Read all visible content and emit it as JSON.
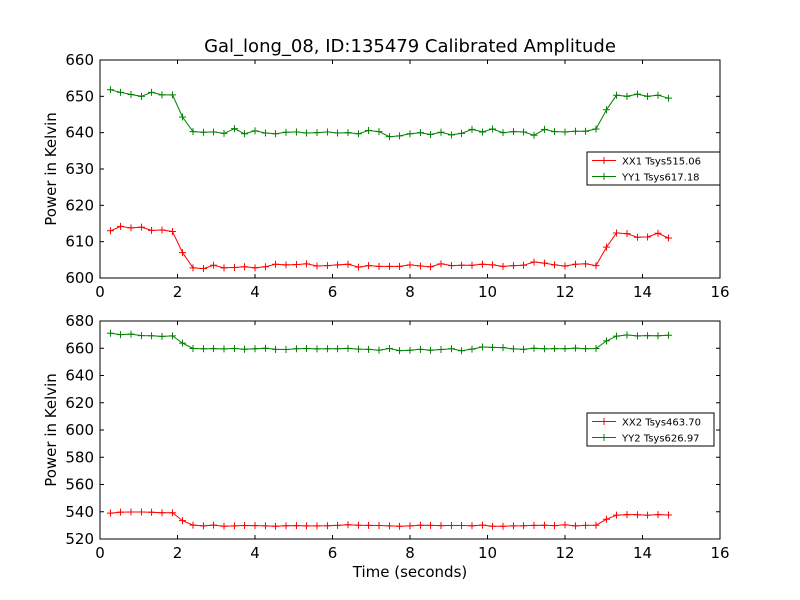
{
  "chart_data": [
    {
      "type": "line",
      "title": "Gal_long_08, ID:135479 Calibrated Amplitude",
      "xlabel": "",
      "ylabel": "Power in Kelvin",
      "xlim": [
        0,
        16
      ],
      "ylim": [
        600,
        660
      ],
      "xticks": [
        0,
        2,
        4,
        6,
        8,
        10,
        12,
        14,
        16
      ],
      "yticks": [
        600,
        610,
        620,
        630,
        640,
        650,
        660
      ],
      "grid": false,
      "legend": "center-right",
      "series": [
        {
          "name": "XX1 Tsys515.06",
          "color": "#ff0000",
          "x": [
            0.27,
            0.53,
            0.8,
            1.07,
            1.33,
            1.6,
            1.87,
            2.13,
            2.4,
            2.67,
            2.93,
            3.2,
            3.47,
            3.73,
            4,
            4.27,
            4.53,
            4.8,
            5.07,
            5.33,
            5.6,
            5.87,
            6.13,
            6.4,
            6.67,
            6.93,
            7.2,
            7.47,
            7.73,
            8,
            8.27,
            8.53,
            8.8,
            9.07,
            9.33,
            9.6,
            9.87,
            10.13,
            10.4,
            10.67,
            10.93,
            11.2,
            11.47,
            11.73,
            12,
            12.27,
            12.53,
            12.8,
            13.07,
            13.33,
            13.6,
            13.87,
            14.13,
            14.4,
            14.67
          ],
          "y": [
            613,
            614.2,
            613.8,
            614,
            613.1,
            613.2,
            612.8,
            607,
            602.8,
            602.6,
            603.5,
            602.8,
            602.9,
            603.1,
            602.8,
            603.1,
            603.8,
            603.6,
            603.7,
            603.9,
            603.3,
            603.4,
            603.6,
            603.8,
            603,
            603.4,
            603.2,
            603.2,
            603.2,
            603.6,
            603.3,
            603.1,
            603.9,
            603.4,
            603.5,
            603.5,
            603.8,
            603.6,
            603.2,
            603.4,
            603.5,
            604.4,
            604.1,
            603.6,
            603.3,
            603.8,
            603.9,
            603.4,
            608.5,
            612.4,
            612.2,
            611.2,
            611.3,
            612.3,
            611
          ]
        },
        {
          "name": "YY1 Tsys617.18",
          "color": "#008000",
          "x": [
            0.27,
            0.53,
            0.8,
            1.07,
            1.33,
            1.6,
            1.87,
            2.13,
            2.4,
            2.67,
            2.93,
            3.2,
            3.47,
            3.73,
            4,
            4.27,
            4.53,
            4.8,
            5.07,
            5.33,
            5.6,
            5.87,
            6.13,
            6.4,
            6.67,
            6.93,
            7.2,
            7.47,
            7.73,
            8,
            8.27,
            8.53,
            8.8,
            9.07,
            9.33,
            9.6,
            9.87,
            10.13,
            10.4,
            10.67,
            10.93,
            11.2,
            11.47,
            11.73,
            12,
            12.27,
            12.53,
            12.8,
            13.07,
            13.33,
            13.6,
            13.87,
            14.13,
            14.4,
            14.67
          ],
          "y": [
            651.8,
            651.1,
            650.5,
            650,
            651.1,
            650.4,
            650.4,
            644.3,
            640.3,
            640.1,
            640.2,
            639.8,
            641.1,
            639.7,
            640.5,
            639.9,
            639.7,
            640.1,
            640.2,
            639.9,
            640,
            640.2,
            639.9,
            640,
            639.7,
            640.6,
            640.3,
            638.9,
            639.1,
            639.7,
            640,
            639.5,
            640.1,
            639.4,
            639.8,
            640.9,
            640.2,
            641,
            640,
            640.3,
            640.2,
            639.3,
            640.9,
            640.3,
            640.2,
            640.4,
            640.4,
            641,
            646.3,
            650.3,
            650,
            650.6,
            650,
            650.3,
            649.5
          ]
        }
      ]
    },
    {
      "type": "line",
      "title": "",
      "xlabel": "Time (seconds)",
      "ylabel": "Power in Kelvin",
      "xlim": [
        0,
        16
      ],
      "ylim": [
        520,
        680
      ],
      "xticks": [
        0,
        2,
        4,
        6,
        8,
        10,
        12,
        14,
        16
      ],
      "yticks": [
        520,
        540,
        560,
        580,
        600,
        620,
        640,
        660,
        680
      ],
      "grid": false,
      "legend": "center-right",
      "series": [
        {
          "name": "XX2 Tsys463.70",
          "color": "#ff0000",
          "x": [
            0.27,
            0.53,
            0.8,
            1.07,
            1.33,
            1.6,
            1.87,
            2.13,
            2.4,
            2.67,
            2.93,
            3.2,
            3.47,
            3.73,
            4,
            4.27,
            4.53,
            4.8,
            5.07,
            5.33,
            5.6,
            5.87,
            6.13,
            6.4,
            6.67,
            6.93,
            7.2,
            7.47,
            7.73,
            8,
            8.27,
            8.53,
            8.8,
            9.07,
            9.33,
            9.6,
            9.87,
            10.13,
            10.4,
            10.67,
            10.93,
            11.2,
            11.47,
            11.73,
            12,
            12.27,
            12.53,
            12.8,
            13.07,
            13.33,
            13.6,
            13.87,
            14.13,
            14.4,
            14.67
          ],
          "y": [
            539,
            539.7,
            539.8,
            539.8,
            539.6,
            539.3,
            539.3,
            533.5,
            530.2,
            529.6,
            530.2,
            529.4,
            529.6,
            529.9,
            529.8,
            529.6,
            529.4,
            529.7,
            529.8,
            529.6,
            529.6,
            529.7,
            530,
            530.5,
            530.1,
            530,
            529.9,
            529.6,
            529.4,
            529.6,
            530.1,
            530,
            529.8,
            529.9,
            529.9,
            529.7,
            530.2,
            529.4,
            529.4,
            529.6,
            529.7,
            530,
            530.1,
            529.8,
            530.4,
            529.6,
            530,
            530.1,
            534.5,
            537.5,
            537.9,
            537.8,
            537.5,
            537.9,
            537.6
          ]
        },
        {
          "name": "YY2 Tsys626.97",
          "color": "#008000",
          "x": [
            0.27,
            0.53,
            0.8,
            1.07,
            1.33,
            1.6,
            1.87,
            2.13,
            2.4,
            2.67,
            2.93,
            3.2,
            3.47,
            3.73,
            4,
            4.27,
            4.53,
            4.8,
            5.07,
            5.33,
            5.6,
            5.87,
            6.13,
            6.4,
            6.67,
            6.93,
            7.2,
            7.47,
            7.73,
            8,
            8.27,
            8.53,
            8.8,
            9.07,
            9.33,
            9.6,
            9.87,
            10.13,
            10.4,
            10.67,
            10.93,
            11.2,
            11.47,
            11.73,
            12,
            12.27,
            12.53,
            12.8,
            13.07,
            13.33,
            13.6,
            13.87,
            14.13,
            14.4,
            14.67
          ],
          "y": [
            671,
            670,
            670.4,
            669.3,
            669.2,
            668.7,
            669.1,
            663.8,
            659.8,
            659.6,
            659.7,
            659.5,
            659.8,
            659.3,
            659.6,
            660,
            659.2,
            659.1,
            659.6,
            659.8,
            659.5,
            659.6,
            659.6,
            659.9,
            659.4,
            659.2,
            658.6,
            659.8,
            658.3,
            658.5,
            659.2,
            658.5,
            659.1,
            659.6,
            658.2,
            659.4,
            660.9,
            660.6,
            660.5,
            659.5,
            659.2,
            660,
            659.6,
            659.7,
            659.7,
            660.1,
            659.7,
            659.8,
            665.4,
            668.9,
            669.7,
            669.1,
            669.3,
            669.2,
            669.5
          ]
        }
      ]
    }
  ]
}
